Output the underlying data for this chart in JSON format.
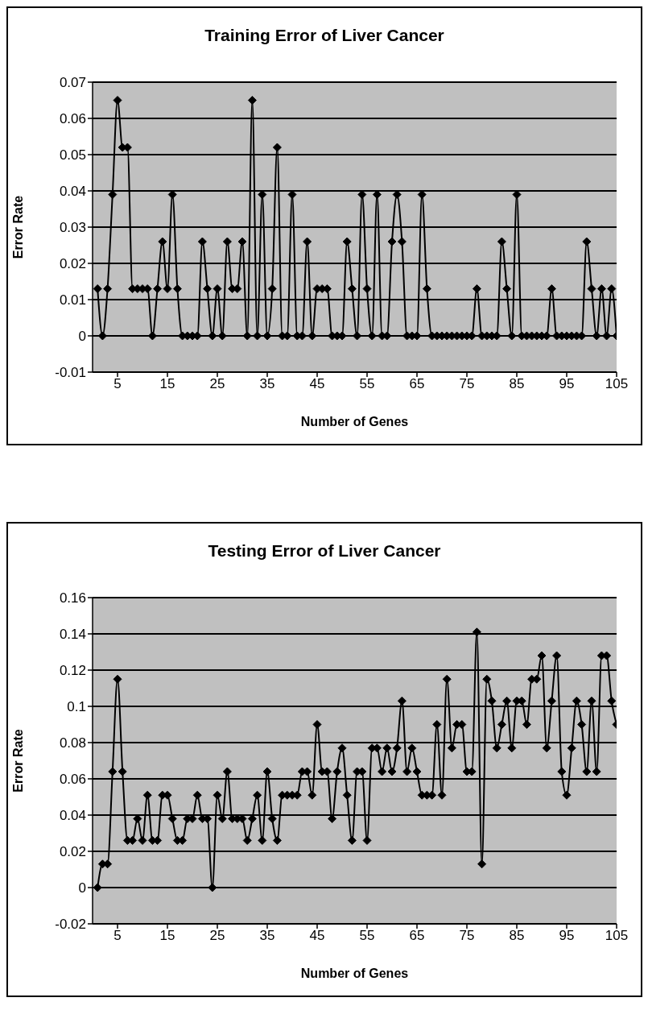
{
  "chart_data": [
    {
      "type": "line",
      "title": "Training Error of Liver Cancer",
      "xlabel": "Number of Genes",
      "ylabel": "Error Rate",
      "xlim": [
        0,
        105
      ],
      "xticks": [
        5,
        15,
        25,
        35,
        45,
        55,
        65,
        75,
        85,
        95,
        105
      ],
      "ylim": [
        -0.01,
        0.07
      ],
      "yticks": [
        -0.01,
        0,
        0.01,
        0.02,
        0.03,
        0.04,
        0.05,
        0.06,
        0.07
      ],
      "grid": "y",
      "legend": false,
      "marker": "diamond",
      "line_style": "solid",
      "x": [
        1,
        2,
        3,
        4,
        5,
        6,
        7,
        8,
        9,
        10,
        11,
        12,
        13,
        14,
        15,
        16,
        17,
        18,
        19,
        20,
        21,
        22,
        23,
        24,
        25,
        26,
        27,
        28,
        29,
        30,
        31,
        32,
        33,
        34,
        35,
        36,
        37,
        38,
        39,
        40,
        41,
        42,
        43,
        44,
        45,
        46,
        47,
        48,
        49,
        50,
        51,
        52,
        53,
        54,
        55,
        56,
        57,
        58,
        59,
        60,
        61,
        62,
        63,
        64,
        65,
        66,
        67,
        68,
        69,
        70,
        71,
        72,
        73,
        74,
        75,
        76,
        77,
        78,
        79,
        80,
        81,
        82,
        83,
        84,
        85,
        86,
        87,
        88,
        89,
        90,
        91,
        92,
        93,
        94,
        95,
        96,
        97,
        98,
        99,
        100,
        101,
        102,
        103,
        104,
        105
      ],
      "series": [
        {
          "color": "#000000",
          "values": [
            0.013,
            0,
            0.013,
            0.039,
            0.065,
            0.052,
            0.052,
            0.013,
            0.013,
            0.013,
            0.013,
            0,
            0.013,
            0.026,
            0.013,
            0.039,
            0.013,
            0,
            0,
            0,
            0,
            0.026,
            0.013,
            0,
            0.013,
            0,
            0.026,
            0.013,
            0.013,
            0.026,
            0,
            0.065,
            0,
            0.039,
            0,
            0.013,
            0.052,
            0,
            0,
            0.039,
            0,
            0,
            0.026,
            0,
            0.013,
            0.013,
            0.013,
            0,
            0,
            0,
            0.026,
            0.013,
            0,
            0.039,
            0.013,
            0,
            0.039,
            0,
            0,
            0.026,
            0.039,
            0.026,
            0,
            0,
            0,
            0.039,
            0.013,
            0,
            0,
            0,
            0,
            0,
            0,
            0,
            0,
            0,
            0.013,
            0,
            0,
            0,
            0,
            0.026,
            0.013,
            0,
            0.039,
            0,
            0,
            0,
            0,
            0,
            0,
            0.013,
            0,
            0,
            0,
            0,
            0,
            0,
            0.026,
            0.013,
            0,
            0.013,
            0,
            0.013,
            0
          ]
        }
      ]
    },
    {
      "type": "line",
      "title": "Testing Error of Liver Cancer",
      "xlabel": "Number of Genes",
      "ylabel": "Error Rate",
      "xlim": [
        0,
        105
      ],
      "xticks": [
        5,
        15,
        25,
        35,
        45,
        55,
        65,
        75,
        85,
        95,
        105
      ],
      "ylim": [
        -0.02,
        0.16
      ],
      "yticks": [
        -0.02,
        0,
        0.02,
        0.04,
        0.06,
        0.08,
        0.1,
        0.12,
        0.14,
        0.16
      ],
      "grid": "y",
      "legend": false,
      "marker": "diamond",
      "line_style": "solid",
      "x": [
        1,
        2,
        3,
        4,
        5,
        6,
        7,
        8,
        9,
        10,
        11,
        12,
        13,
        14,
        15,
        16,
        17,
        18,
        19,
        20,
        21,
        22,
        23,
        24,
        25,
        26,
        27,
        28,
        29,
        30,
        31,
        32,
        33,
        34,
        35,
        36,
        37,
        38,
        39,
        40,
        41,
        42,
        43,
        44,
        45,
        46,
        47,
        48,
        49,
        50,
        51,
        52,
        53,
        54,
        55,
        56,
        57,
        58,
        59,
        60,
        61,
        62,
        63,
        64,
        65,
        66,
        67,
        68,
        69,
        70,
        71,
        72,
        73,
        74,
        75,
        76,
        77,
        78,
        79,
        80,
        81,
        82,
        83,
        84,
        85,
        86,
        87,
        88,
        89,
        90,
        91,
        92,
        93,
        94,
        95,
        96,
        97,
        98,
        99,
        100,
        101,
        102,
        103,
        104,
        105
      ],
      "series": [
        {
          "color": "#000000",
          "values": [
            0,
            0.013,
            0.013,
            0.064,
            0.115,
            0.064,
            0.026,
            0.026,
            0.038,
            0.026,
            0.051,
            0.026,
            0.026,
            0.051,
            0.051,
            0.038,
            0.026,
            0.026,
            0.038,
            0.038,
            0.051,
            0.038,
            0.038,
            0,
            0.051,
            0.038,
            0.064,
            0.038,
            0.038,
            0.038,
            0.026,
            0.038,
            0.051,
            0.026,
            0.064,
            0.038,
            0.026,
            0.051,
            0.051,
            0.051,
            0.051,
            0.064,
            0.064,
            0.051,
            0.09,
            0.064,
            0.064,
            0.038,
            0.064,
            0.077,
            0.051,
            0.026,
            0.064,
            0.064,
            0.026,
            0.077,
            0.077,
            0.064,
            0.077,
            0.064,
            0.077,
            0.103,
            0.064,
            0.077,
            0.064,
            0.051,
            0.051,
            0.051,
            0.09,
            0.051,
            0.115,
            0.077,
            0.09,
            0.09,
            0.064,
            0.064,
            0.141,
            0.013,
            0.115,
            0.103,
            0.077,
            0.09,
            0.103,
            0.077,
            0.103,
            0.103,
            0.09,
            0.115,
            0.115,
            0.128,
            0.077,
            0.103,
            0.128,
            0.064,
            0.051,
            0.077,
            0.103,
            0.09,
            0.064,
            0.103,
            0.064,
            0.128,
            0.128,
            0.103,
            0.09
          ]
        }
      ]
    }
  ]
}
